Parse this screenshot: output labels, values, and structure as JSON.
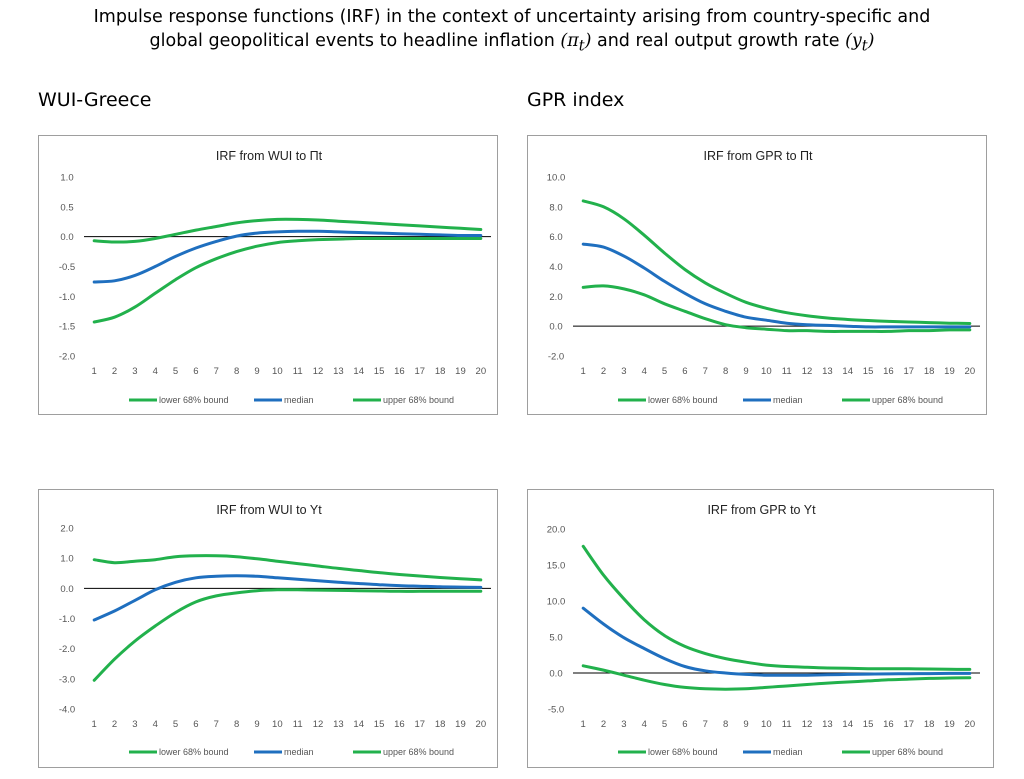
{
  "figure": {
    "title_line1": "Impulse response functions (IRF) in the context of uncertainty arising from country-specific and",
    "title_line2_text": "global geopolitical events to headline inflation",
    "title_line2_sym1": "(π",
    "title_line2_sub1": "t",
    "title_line2_close1": ")",
    "title_line2_mid": "and real output growth rate",
    "title_line2_sym2": "(y",
    "title_line2_sub2": "t",
    "title_line2_close2": ")",
    "section_left": "WUI-Greece",
    "section_right": "GPR index"
  },
  "colors": {
    "bound": "#22b14c",
    "median": "#1f6fbf",
    "zero": "#000000",
    "border": "#9e9e9e"
  },
  "legend": [
    "lower 68% bound",
    "median",
    "upper 68% bound"
  ],
  "chart_data": [
    {
      "type": "line",
      "title": "IRF from WUI to Πt",
      "x": [
        1,
        2,
        3,
        4,
        5,
        6,
        7,
        8,
        9,
        10,
        11,
        12,
        13,
        14,
        15,
        16,
        17,
        18,
        19,
        20
      ],
      "ylim": [
        -2.0,
        1.0
      ],
      "yticks": [
        "1.0",
        "0.5",
        "0.0",
        "-0.5",
        "-1.0",
        "-1.5",
        "-2.0"
      ],
      "series": [
        {
          "name": "lower 68% bound",
          "role": "bound",
          "values": [
            -1.43,
            -1.35,
            -1.18,
            -0.95,
            -0.72,
            -0.52,
            -0.37,
            -0.25,
            -0.16,
            -0.1,
            -0.07,
            -0.05,
            -0.04,
            -0.03,
            -0.03,
            -0.03,
            -0.03,
            -0.03,
            -0.03,
            -0.03
          ]
        },
        {
          "name": "median",
          "role": "median",
          "values": [
            -0.76,
            -0.74,
            -0.65,
            -0.5,
            -0.33,
            -0.19,
            -0.08,
            0.01,
            0.06,
            0.08,
            0.09,
            0.09,
            0.08,
            0.07,
            0.06,
            0.05,
            0.04,
            0.03,
            0.02,
            0.02
          ]
        },
        {
          "name": "upper 68% bound",
          "role": "bound",
          "values": [
            -0.07,
            -0.09,
            -0.08,
            -0.03,
            0.04,
            0.11,
            0.17,
            0.23,
            0.27,
            0.29,
            0.29,
            0.28,
            0.26,
            0.24,
            0.22,
            0.2,
            0.18,
            0.16,
            0.14,
            0.12
          ]
        }
      ]
    },
    {
      "type": "line",
      "title": "IRF from GPR to Πt",
      "x": [
        1,
        2,
        3,
        4,
        5,
        6,
        7,
        8,
        9,
        10,
        11,
        12,
        13,
        14,
        15,
        16,
        17,
        18,
        19,
        20
      ],
      "ylim": [
        -2.0,
        10.0
      ],
      "yticks": [
        "10.0",
        "8.0",
        "6.0",
        "4.0",
        "2.0",
        "0.0",
        "-2.0"
      ],
      "series": [
        {
          "name": "lower 68% bound",
          "role": "bound",
          "values": [
            2.6,
            2.7,
            2.5,
            2.1,
            1.5,
            1.0,
            0.5,
            0.1,
            -0.1,
            -0.2,
            -0.3,
            -0.3,
            -0.35,
            -0.35,
            -0.35,
            -0.35,
            -0.3,
            -0.3,
            -0.25,
            -0.25
          ]
        },
        {
          "name": "median",
          "role": "median",
          "values": [
            5.5,
            5.3,
            4.7,
            3.9,
            3.0,
            2.2,
            1.5,
            1.0,
            0.6,
            0.4,
            0.2,
            0.1,
            0.05,
            0.0,
            -0.05,
            -0.05,
            -0.05,
            -0.05,
            -0.05,
            -0.05
          ]
        },
        {
          "name": "upper 68% bound",
          "role": "bound",
          "values": [
            8.4,
            8.0,
            7.2,
            6.1,
            4.9,
            3.8,
            2.9,
            2.2,
            1.6,
            1.2,
            0.9,
            0.7,
            0.55,
            0.45,
            0.38,
            0.32,
            0.28,
            0.24,
            0.2,
            0.18
          ]
        }
      ]
    },
    {
      "type": "line",
      "title": "IRF from WUI to Yt",
      "x": [
        1,
        2,
        3,
        4,
        5,
        6,
        7,
        8,
        9,
        10,
        11,
        12,
        13,
        14,
        15,
        16,
        17,
        18,
        19,
        20
      ],
      "ylim": [
        -4.0,
        2.0
      ],
      "yticks": [
        "2.0",
        "1.0",
        "0.0",
        "-1.0",
        "-2.0",
        "-3.0",
        "-4.0"
      ],
      "series": [
        {
          "name": "lower 68% bound",
          "role": "bound",
          "values": [
            -3.05,
            -2.35,
            -1.75,
            -1.25,
            -0.8,
            -0.45,
            -0.25,
            -0.15,
            -0.08,
            -0.05,
            -0.05,
            -0.06,
            -0.07,
            -0.08,
            -0.09,
            -0.1,
            -0.1,
            -0.1,
            -0.1,
            -0.1
          ]
        },
        {
          "name": "median",
          "role": "median",
          "values": [
            -1.05,
            -0.75,
            -0.4,
            -0.05,
            0.2,
            0.35,
            0.4,
            0.42,
            0.4,
            0.35,
            0.3,
            0.25,
            0.2,
            0.16,
            0.12,
            0.09,
            0.07,
            0.05,
            0.04,
            0.03
          ]
        },
        {
          "name": "upper 68% bound",
          "role": "bound",
          "values": [
            0.95,
            0.85,
            0.9,
            0.95,
            1.05,
            1.08,
            1.08,
            1.05,
            0.98,
            0.9,
            0.82,
            0.74,
            0.66,
            0.59,
            0.52,
            0.46,
            0.41,
            0.36,
            0.32,
            0.28
          ]
        }
      ]
    },
    {
      "type": "line",
      "title": "IRF from GPR to Yt",
      "x": [
        1,
        2,
        3,
        4,
        5,
        6,
        7,
        8,
        9,
        10,
        11,
        12,
        13,
        14,
        15,
        16,
        17,
        18,
        19,
        20
      ],
      "ylim": [
        -5.0,
        20.0
      ],
      "yticks": [
        "20.0",
        "15.0",
        "10.0",
        "5.0",
        "0.0",
        "-5.0"
      ],
      "series": [
        {
          "name": "lower 68% bound",
          "role": "bound",
          "values": [
            1.0,
            0.4,
            -0.3,
            -1.0,
            -1.6,
            -2.0,
            -2.2,
            -2.25,
            -2.2,
            -2.0,
            -1.8,
            -1.6,
            -1.4,
            -1.25,
            -1.1,
            -0.95,
            -0.85,
            -0.75,
            -0.7,
            -0.65
          ]
        },
        {
          "name": "median",
          "role": "median",
          "values": [
            9.0,
            6.8,
            4.9,
            3.4,
            2.0,
            0.9,
            0.3,
            0.0,
            -0.2,
            -0.3,
            -0.3,
            -0.3,
            -0.25,
            -0.2,
            -0.15,
            -0.12,
            -0.1,
            -0.08,
            -0.06,
            -0.05
          ]
        },
        {
          "name": "upper 68% bound",
          "role": "bound",
          "values": [
            17.6,
            13.6,
            10.3,
            7.4,
            5.2,
            3.7,
            2.7,
            2.0,
            1.5,
            1.1,
            0.9,
            0.8,
            0.7,
            0.65,
            0.6,
            0.6,
            0.58,
            0.55,
            0.52,
            0.5
          ]
        }
      ]
    }
  ]
}
